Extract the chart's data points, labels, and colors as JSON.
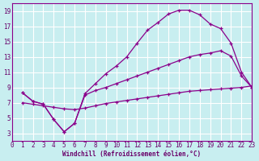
{
  "xlabel": "Windchill (Refroidissement éolien,°C)",
  "background_color": "#c8eef0",
  "grid_color": "#ffffff",
  "line_color": "#8b008b",
  "xlim": [
    0,
    23
  ],
  "ylim": [
    2,
    20
  ],
  "xticks": [
    0,
    1,
    2,
    3,
    4,
    5,
    6,
    7,
    8,
    9,
    10,
    11,
    12,
    13,
    14,
    15,
    16,
    17,
    18,
    19,
    20,
    21,
    22,
    23
  ],
  "yticks": [
    3,
    5,
    7,
    9,
    11,
    13,
    15,
    17,
    19
  ],
  "curve1_x": [
    1,
    2,
    3,
    4,
    5,
    6,
    7,
    8,
    9,
    10,
    11,
    12,
    13,
    14,
    15,
    16,
    17,
    18,
    19,
    20,
    21,
    22,
    23
  ],
  "curve1_y": [
    8.3,
    7.2,
    6.8,
    4.8,
    3.2,
    4.3,
    8.2,
    9.5,
    10.8,
    11.8,
    13.0,
    14.8,
    16.5,
    17.5,
    18.6,
    19.1,
    19.1,
    18.5,
    17.3,
    16.7,
    14.8,
    11.0,
    9.0
  ],
  "curve2_x": [
    1,
    2,
    3,
    4,
    5,
    6,
    7,
    8,
    9,
    10,
    11,
    12,
    13,
    14,
    15,
    16,
    17,
    18,
    19,
    20,
    21,
    22,
    23
  ],
  "curve2_y": [
    8.3,
    7.2,
    6.8,
    4.8,
    3.2,
    4.3,
    8.0,
    8.6,
    9.0,
    9.5,
    10.0,
    10.5,
    11.0,
    11.5,
    12.0,
    12.5,
    13.0,
    13.3,
    13.5,
    13.8,
    13.1,
    10.5,
    9.0
  ],
  "curve3_x": [
    1,
    2,
    3,
    4,
    5,
    6,
    7,
    8,
    9,
    10,
    11,
    12,
    13,
    14,
    15,
    16,
    17,
    18,
    19,
    20,
    21,
    22,
    23
  ],
  "curve3_y": [
    7.0,
    6.8,
    6.6,
    6.4,
    6.2,
    6.1,
    6.3,
    6.6,
    6.9,
    7.1,
    7.3,
    7.5,
    7.7,
    7.9,
    8.1,
    8.3,
    8.5,
    8.6,
    8.7,
    8.8,
    8.9,
    9.0,
    9.2
  ]
}
